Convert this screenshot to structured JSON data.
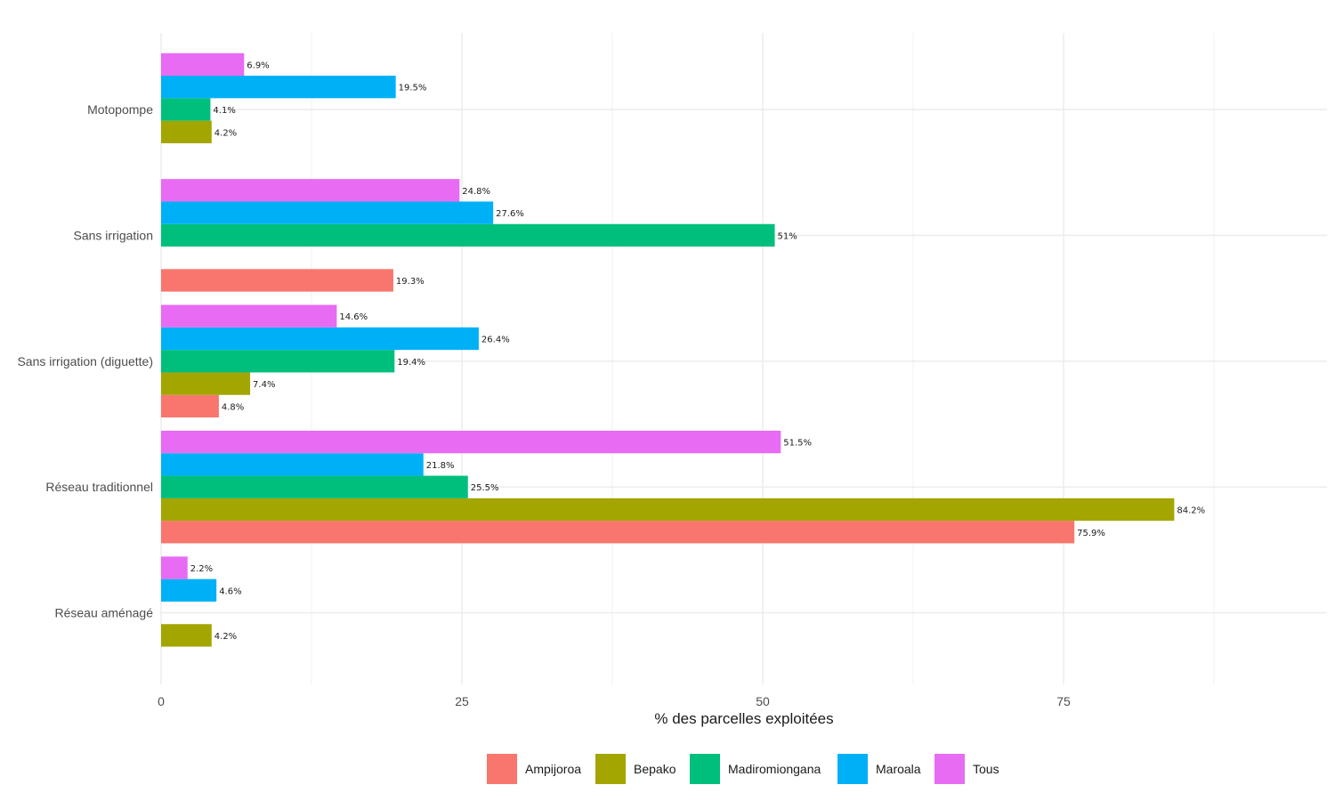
{
  "chart_data": {
    "type": "bar",
    "orientation": "horizontal",
    "title": "",
    "xlabel": "% des parcelles exploitées",
    "ylabel": "",
    "xlim": [
      0,
      97
    ],
    "xticks": [
      0,
      25,
      50,
      75
    ],
    "xtick_labels": [
      "0",
      "25",
      "50",
      "75"
    ],
    "grid": true,
    "legend_position": "bottom",
    "categories": [
      "Motopompe",
      "Sans irrigation",
      "Sans irrigation (diguette)",
      "Réseau traditionnel",
      "Réseau aménagé"
    ],
    "series": [
      {
        "name": "Ampijoroa",
        "color": "#F8766D",
        "values": [
          null,
          19.3,
          4.8,
          75.9,
          null
        ],
        "labels": [
          null,
          "19.3%",
          "4.8%",
          "75.9%",
          null
        ]
      },
      {
        "name": "Bepako",
        "color": "#A3A500",
        "values": [
          4.2,
          null,
          7.4,
          84.2,
          4.2
        ],
        "labels": [
          "4.2%",
          null,
          "7.4%",
          "84.2%",
          "4.2%"
        ]
      },
      {
        "name": "Madiromiongana",
        "color": "#00BF7D",
        "values": [
          4.1,
          51,
          19.4,
          25.5,
          null
        ],
        "labels": [
          "4.1%",
          "51%",
          "19.4%",
          "25.5%",
          null
        ]
      },
      {
        "name": "Maroala",
        "color": "#00B0F6",
        "values": [
          19.5,
          27.6,
          26.4,
          21.8,
          4.6
        ],
        "labels": [
          "19.5%",
          "27.6%",
          "26.4%",
          "21.8%",
          "4.6%"
        ]
      },
      {
        "name": "Tous",
        "color": "#E76BF3",
        "values": [
          6.9,
          24.8,
          14.6,
          51.5,
          2.2
        ],
        "labels": [
          "6.9%",
          "24.8%",
          "14.6%",
          "51.5%",
          "2.2%"
        ]
      }
    ]
  }
}
